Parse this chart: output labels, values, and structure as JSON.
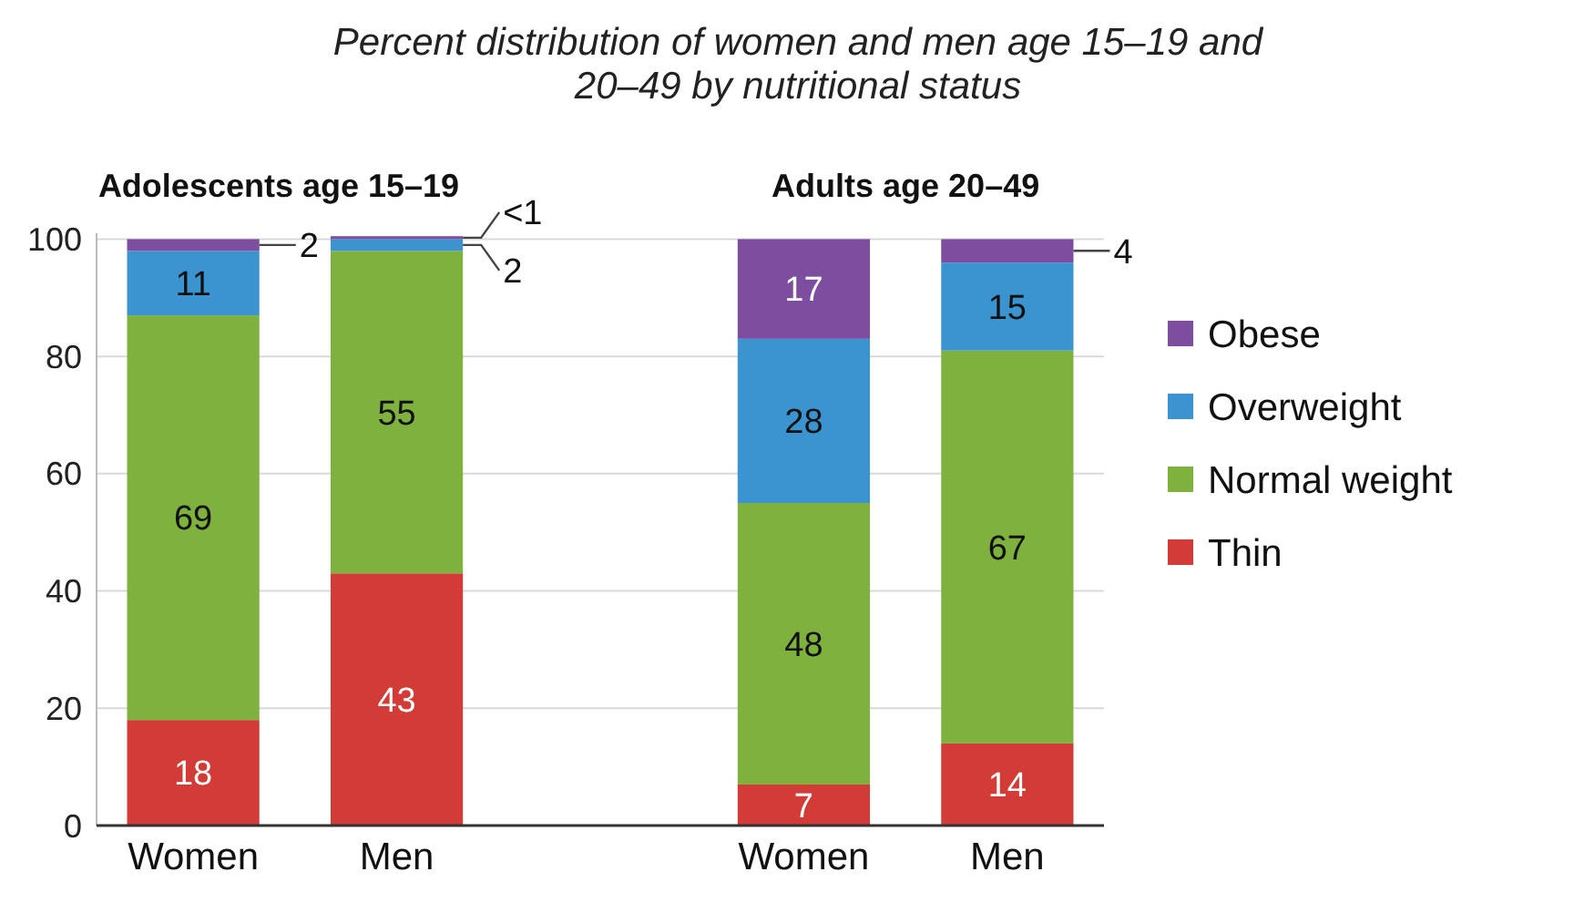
{
  "chart_data": {
    "type": "bar",
    "stacked": true,
    "title": "Percent distribution of women and men age 15–19 and 20–49 by nutritional status",
    "annotations": [
      "Adolescents age 15–19",
      "Adults age 20–49"
    ],
    "categories": [
      "Women",
      "Men",
      null,
      "Women",
      "Men"
    ],
    "series": [
      {
        "name": "Thin",
        "color": "#d23b36",
        "values": [
          18,
          43,
          null,
          7,
          14
        ],
        "value_labels": [
          "18",
          "43",
          null,
          "7",
          "14"
        ]
      },
      {
        "name": "Normal weight",
        "color": "#7fb13f",
        "values": [
          69,
          55,
          null,
          48,
          67
        ],
        "value_labels": [
          "69",
          "55",
          null,
          "48",
          "67"
        ]
      },
      {
        "name": "Overweight",
        "color": "#3b94cf",
        "values": [
          11,
          2,
          null,
          28,
          15
        ],
        "value_labels": [
          "11",
          "2",
          null,
          "28",
          "15"
        ]
      },
      {
        "name": "Obese",
        "color": "#7d4ea0",
        "values": [
          2,
          0.5,
          null,
          17,
          4
        ],
        "value_labels": [
          "2",
          "<1",
          null,
          "17",
          "4"
        ]
      }
    ],
    "ylim": [
      0,
      101
    ],
    "yticks": [
      0,
      20,
      40,
      60,
      80,
      100
    ],
    "grid": "y",
    "legend": "right"
  }
}
